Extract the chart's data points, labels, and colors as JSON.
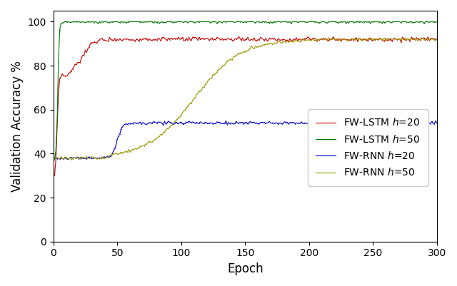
{
  "title": "",
  "xlabel": "Epoch",
  "ylabel": "Validation Accuracy %",
  "xlim": [
    0,
    300
  ],
  "ylim": [
    0,
    105
  ],
  "yticks": [
    0,
    20,
    40,
    60,
    80,
    100
  ],
  "xticks": [
    0,
    50,
    100,
    150,
    200,
    250,
    300
  ],
  "legend": [
    {
      "label": "FW-LSTM $h$=20",
      "color": "#cc0000"
    },
    {
      "label": "FW-LSTM $h$=50",
      "color": "#007700"
    },
    {
      "label": "FW-RNN $h$=20",
      "color": "#0000cc"
    },
    {
      "label": "FW-RNN $h$=50",
      "color": "#999900"
    }
  ],
  "figsize": [
    6.4,
    4.01
  ],
  "dpi": 100
}
